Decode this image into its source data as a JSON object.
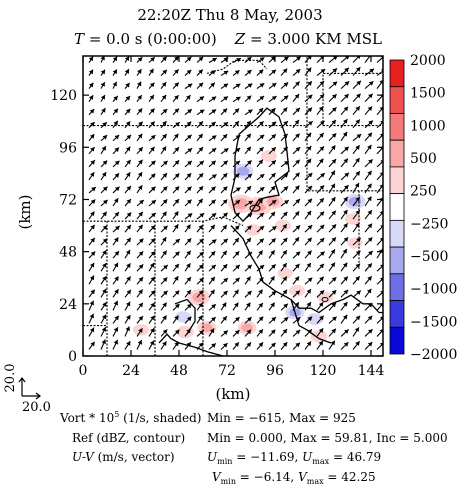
{
  "chart_data": {
    "type": "heatmap",
    "title": "22:20Z   Thu 8 May, 2003",
    "subtitle": {
      "time_var": "T",
      "time_value": " = 0.0 s (0:00:00)",
      "height_var": "Z",
      "height_value": " = 3.000 KM MSL"
    },
    "xlabel": "(km)",
    "ylabel": "(km)",
    "xlim": [
      0,
      150
    ],
    "ylim": [
      0,
      138
    ],
    "x_ticks": [
      0,
      24,
      48,
      72,
      96,
      120,
      144
    ],
    "y_ticks": [
      0,
      24,
      48,
      72,
      96,
      120
    ],
    "colorbar": {
      "levels": [
        2000,
        1500,
        1000,
        500,
        250,
        -250,
        -500,
        -1000,
        -1500,
        -2000
      ],
      "colors": [
        "#e8201f",
        "#f05050",
        "#f47a7a",
        "#f8a6a6",
        "#fcd4d4",
        "#ffffff",
        "#d8d8f8",
        "#a8a8ee",
        "#6e6ee6",
        "#3a3ae0",
        "#0a0ad8"
      ]
    },
    "vector_scale_label": "20.0",
    "vorticity_patches": [
      {
        "x": 58,
        "y": 27,
        "vort": 700
      },
      {
        "x": 50,
        "y": 18,
        "vort": -300
      },
      {
        "x": 62,
        "y": 13,
        "vort": 500
      },
      {
        "x": 51,
        "y": 11,
        "vort": 400
      },
      {
        "x": 79,
        "y": 70,
        "vort": 900
      },
      {
        "x": 88,
        "y": 69,
        "vort": 925
      },
      {
        "x": 95,
        "y": 71,
        "vort": 600
      },
      {
        "x": 85,
        "y": 58,
        "vort": 300
      },
      {
        "x": 80,
        "y": 85,
        "vort": -600
      },
      {
        "x": 93,
        "y": 92,
        "vort": 300
      },
      {
        "x": 136,
        "y": 71,
        "vort": -615
      },
      {
        "x": 135,
        "y": 63,
        "vort": 300
      },
      {
        "x": 100,
        "y": 60,
        "vort": 300
      },
      {
        "x": 106,
        "y": 20,
        "vort": -500
      },
      {
        "x": 116,
        "y": 17,
        "vort": -350
      },
      {
        "x": 121,
        "y": 27,
        "vort": 300
      },
      {
        "x": 118,
        "y": 9,
        "vort": 350
      },
      {
        "x": 82,
        "y": 13,
        "vort": 500
      },
      {
        "x": 29,
        "y": 12,
        "vort": 300
      },
      {
        "x": 107,
        "y": 30,
        "vort": 300
      },
      {
        "x": 101,
        "y": 38,
        "vort": 250
      },
      {
        "x": 136,
        "y": 52,
        "vort": 250
      }
    ],
    "reflectivity_outline": [
      [
        78,
        102
      ],
      [
        88,
        110
      ],
      [
        92,
        114
      ],
      [
        98,
        110
      ],
      [
        101,
        102
      ],
      [
        102,
        94
      ],
      [
        103,
        85
      ],
      [
        96,
        80
      ],
      [
        98,
        74
      ],
      [
        92,
        73
      ],
      [
        88,
        72
      ],
      [
        84,
        66
      ],
      [
        80,
        62
      ],
      [
        76,
        66
      ],
      [
        74,
        74
      ],
      [
        76,
        82
      ],
      [
        76,
        92
      ],
      [
        78,
        102
      ]
    ],
    "vector_field": {
      "u_min": -11.69,
      "u_max": 46.79,
      "v_min": -6.14,
      "v_max": 42.25,
      "samples": [
        {
          "x": 10,
          "y": 130,
          "u": 8,
          "v": 12
        },
        {
          "x": 70,
          "y": 130,
          "u": 14,
          "v": 10
        },
        {
          "x": 140,
          "y": 130,
          "u": 16,
          "v": 16
        },
        {
          "x": 10,
          "y": 70,
          "u": 12,
          "v": 14
        },
        {
          "x": 75,
          "y": 70,
          "u": 14,
          "v": 12
        },
        {
          "x": 140,
          "y": 70,
          "u": 14,
          "v": 18
        },
        {
          "x": 10,
          "y": 10,
          "u": 10,
          "v": 18
        },
        {
          "x": 75,
          "y": 10,
          "u": 12,
          "v": 14
        },
        {
          "x": 140,
          "y": 10,
          "u": 14,
          "v": 16
        }
      ]
    },
    "legend": [
      {
        "label": "Vort * 10",
        "sup": "5",
        "label_rest": " (1/s, shaded)",
        "stats": "Min = −615, Max = 925"
      },
      {
        "label": "Ref (dBZ, contour)",
        "stats": "Min = 0.000, Max = 59.81, Inc = 5.000"
      },
      {
        "label": "U-V",
        "label_rest": " (m/s, vector)",
        "u_stats_pre": "U",
        "u_min_sub": "min",
        "u_min_val": " = −11.69, ",
        "u_max_pre": "U",
        "u_max_sub": "max",
        "u_max_val": " = 46.79",
        "v_stats_pre": "V",
        "v_min_sub": "min",
        "v_min_val": " = −6.14, ",
        "v_max_pre": "V",
        "v_max_sub": "max",
        "v_max_val": " = 42.25"
      }
    ]
  }
}
